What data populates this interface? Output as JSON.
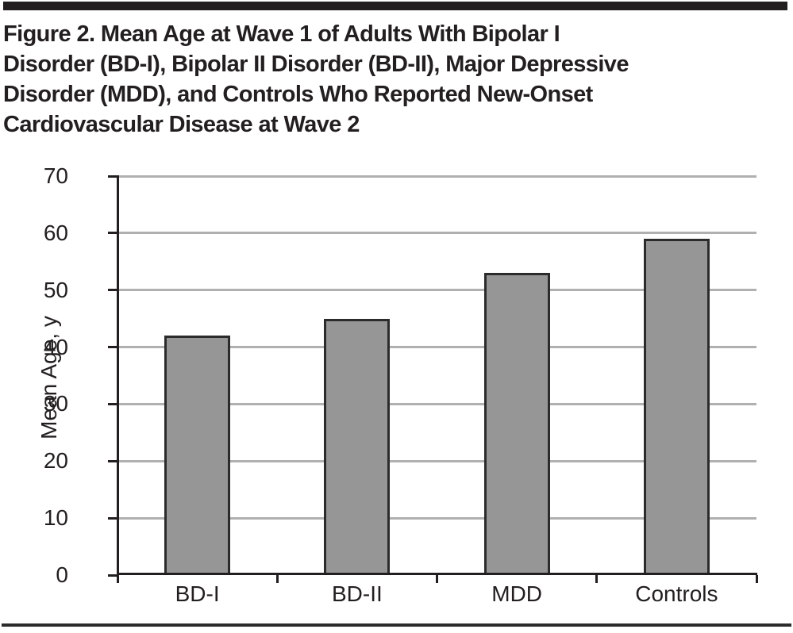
{
  "figure": {
    "title_lines": [
      "Figure 2. Mean Age at Wave 1 of Adults With Bipolar I",
      "Disorder (BD-I), Bipolar II Disorder (BD-II), Major Depressive",
      "Disorder (MDD), and Controls Who Reported New-Onset",
      "Cardiovascular Disease at Wave 2"
    ]
  },
  "chart_data": {
    "type": "bar",
    "title": "Figure 2. Mean Age at Wave 1 of Adults With Bipolar I Disorder (BD-I), Bipolar II Disorder (BD-II), Major Depressive Disorder (MDD), and Controls Who Reported New-Onset Cardiovascular Disease at Wave 2",
    "categories": [
      "BD-I",
      "BD-II",
      "MDD",
      "Controls"
    ],
    "values": [
      42,
      45,
      53,
      59
    ],
    "xlabel": "",
    "ylabel": "Mean Age, y",
    "ylim": [
      0,
      70
    ],
    "yticks": [
      0,
      10,
      20,
      30,
      40,
      50,
      60,
      70
    ],
    "grid": true,
    "legend": false,
    "colors": {
      "bar_fill": "#969696",
      "bar_border": "#2b2b2b",
      "gridline": "#b0b0b0",
      "axis": "#231f20",
      "text": "#231f20",
      "rule": "#231f20"
    }
  }
}
